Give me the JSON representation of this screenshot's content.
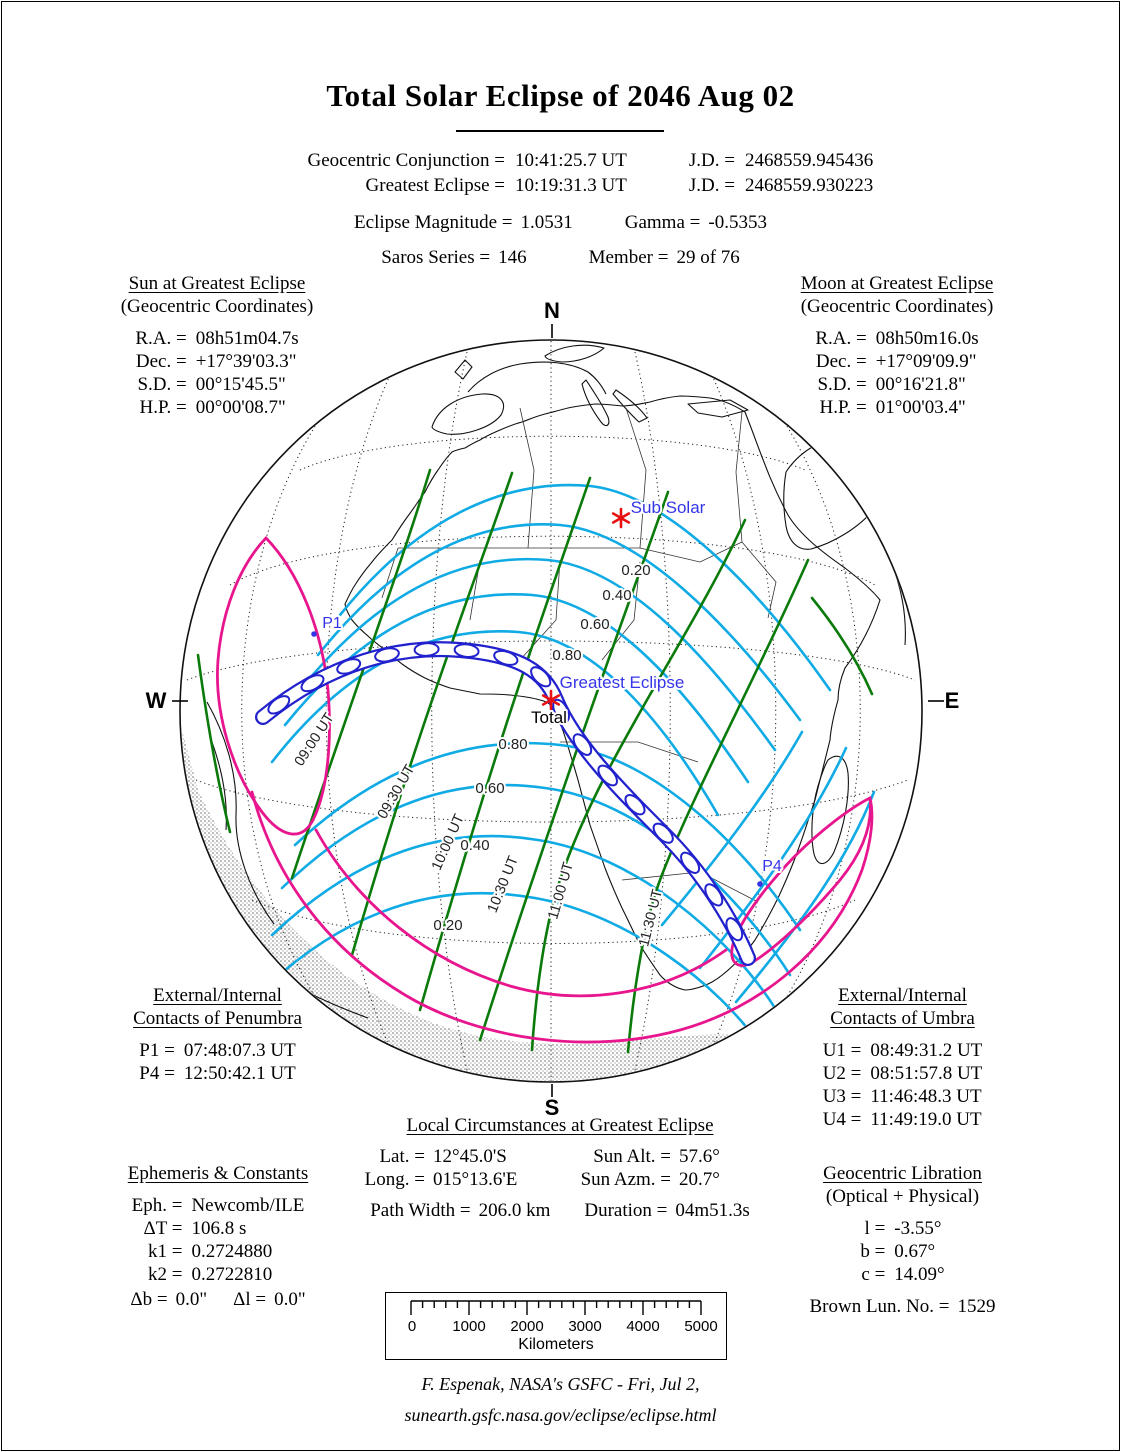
{
  "title": "Total Solar Eclipse of  2046 Aug 02",
  "header": {
    "rows": [
      {
        "k": "Geocentric Conjunction =",
        "v": "10:41:25.7 UT",
        "jk": "J.D. =",
        "jv": "2468559.945436"
      },
      {
        "k": "Greatest Eclipse =",
        "v": "10:19:31.3 UT",
        "jk": "J.D. =",
        "jv": "2468559.930223"
      }
    ],
    "magnitude_label": "Eclipse Magnitude =",
    "magnitude": "1.0531",
    "gamma_label": "Gamma =",
    "gamma": "-0.5353",
    "saros_label": "Saros Series =",
    "saros": "146",
    "member_label": "Member =",
    "member": "29 of 76"
  },
  "sun_panel": {
    "title": "Sun at Greatest Eclipse",
    "subtitle": "(Geocentric Coordinates)",
    "rows": [
      {
        "k": "R.A. =",
        "v": "08h51m04.7s"
      },
      {
        "k": "Dec. =",
        "v": "+17°39'03.3\""
      },
      {
        "k": "S.D. =",
        "v": "00°15'45.5\""
      },
      {
        "k": "H.P. =",
        "v": "00°00'08.7\""
      }
    ]
  },
  "moon_panel": {
    "title": "Moon at Greatest Eclipse",
    "subtitle": "(Geocentric Coordinates)",
    "rows": [
      {
        "k": "R.A. =",
        "v": "08h50m16.0s"
      },
      {
        "k": "Dec. =",
        "v": "+17°09'09.9\""
      },
      {
        "k": "S.D. =",
        "v": "00°16'21.8\""
      },
      {
        "k": "H.P. =",
        "v": "01°00'03.4\""
      }
    ]
  },
  "map": {
    "compass": {
      "n": "N",
      "s": "S",
      "e": "E",
      "w": "W"
    },
    "sub_solar_label": "Sub Solar",
    "greatest_eclipse_label": "Greatest Eclipse",
    "total_label": "Total",
    "p1_label": "P1",
    "p4_label": "P4",
    "ut_labels": [
      "09:00 UT",
      "09:30 UT",
      "10:00 UT",
      "10:30 UT",
      "11:00 UT",
      "11:30 UT"
    ],
    "contours_north": [
      "0.20",
      "0.40",
      "0.60",
      "0.80"
    ],
    "contours_south": [
      "0.80",
      "0.60",
      "0.40",
      "0.20"
    ],
    "colors": {
      "magnitude_contour": "#10AAE4",
      "time_line": "#0A7A0A",
      "penumbra_limit": "#E8168E",
      "umbra_path": "#2121CE",
      "map_label_blue": "#3535E8",
      "marker_red": "#E81010"
    }
  },
  "penumbra_contacts": {
    "title_line1": "External/Internal",
    "title_line2": "Contacts of Penumbra",
    "rows": [
      {
        "k": "P1 =",
        "v": "07:48:07.3 UT"
      },
      {
        "k": "P4 =",
        "v": "12:50:42.1 UT"
      }
    ]
  },
  "umbra_contacts": {
    "title_line1": "External/Internal",
    "title_line2": "Contacts of Umbra",
    "rows": [
      {
        "k": "U1 =",
        "v": "08:49:31.2 UT"
      },
      {
        "k": "U2 =",
        "v": "08:51:57.8 UT"
      },
      {
        "k": "U3 =",
        "v": "11:46:48.3 UT"
      },
      {
        "k": "U4 =",
        "v": "11:49:19.0 UT"
      }
    ]
  },
  "local_circumstances": {
    "title": "Local Circumstances at Greatest Eclipse",
    "rows": [
      {
        "k": "Lat. =",
        "v": "12°45.0'S"
      },
      {
        "k": "Long. =",
        "v": "015°13.6'E"
      },
      {
        "k": "Sun Alt. =",
        "v": "57.6°"
      },
      {
        "k": "Sun Azm. =",
        "v": "20.7°"
      },
      {
        "k": "Path Width =",
        "v": "206.0 km"
      },
      {
        "k": "Duration =",
        "v": "04m51.3s"
      }
    ]
  },
  "ephemeris": {
    "title": "Ephemeris & Constants",
    "rows": [
      {
        "k": "Eph. =",
        "v": "Newcomb/ILE"
      },
      {
        "k": "ΔT =",
        "v": "106.8 s"
      },
      {
        "k": "k1 =",
        "v": "0.2724880"
      },
      {
        "k": "k2 =",
        "v": "0.2722810"
      }
    ],
    "db_label": "Δb =",
    "db": "0.0\"",
    "dl_label": "Δl =",
    "dl": "0.0\""
  },
  "libration": {
    "title": "Geocentric Libration",
    "subtitle": "(Optical + Physical)",
    "rows": [
      {
        "k": "l =",
        "v": "-3.55°"
      },
      {
        "k": "b =",
        "v": "0.67°"
      },
      {
        "k": "c =",
        "v": "14.09°"
      }
    ],
    "brown_label": "Brown Lun. No. =",
    "brown": "1529"
  },
  "scale_bar": {
    "tick_labels": [
      "0",
      "1000",
      "2000",
      "3000",
      "4000",
      "5000"
    ],
    "unit": "Kilometers"
  },
  "credit": {
    "line1": "F. Espenak, NASA's GSFC - Fri, Jul 2,",
    "line2": "sunearth.gsfc.nasa.gov/eclipse/eclipse.html"
  }
}
